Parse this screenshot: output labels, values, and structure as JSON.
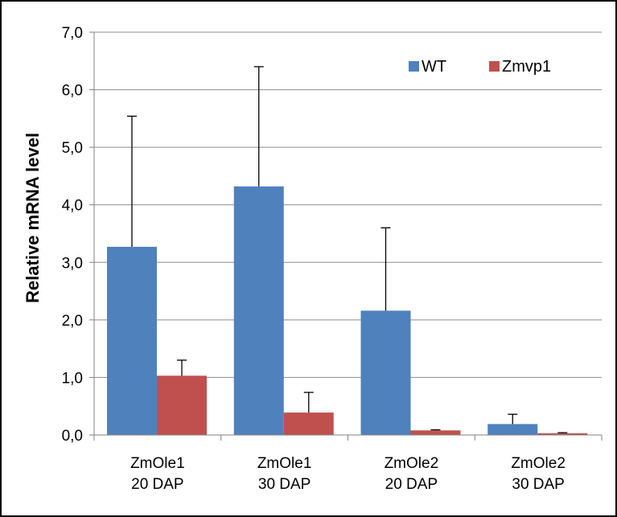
{
  "chart_data": {
    "type": "bar",
    "title": "",
    "xlabel": "",
    "ylabel": "Relative mRNA level",
    "ylim": [
      0,
      7
    ],
    "ytick_step": 1,
    "ytick_labels": [
      "0,0",
      "1,0",
      "2,0",
      "3,0",
      "4,0",
      "5,0",
      "6,0",
      "7,0"
    ],
    "grid": true,
    "legend_position": "top-right",
    "categories": [
      [
        "ZmOle1",
        "20 DAP"
      ],
      [
        "ZmOle1",
        "30 DAP"
      ],
      [
        "ZmOle2",
        "20 DAP"
      ],
      [
        "ZmOle2",
        "30 DAP"
      ]
    ],
    "series": [
      {
        "name": "WT",
        "color": "#4f81bd",
        "values": [
          3.27,
          4.32,
          2.16,
          0.19
        ],
        "error_plus": [
          2.27,
          2.08,
          1.44,
          0.17
        ]
      },
      {
        "name": "Zmvp1",
        "color": "#c0504d",
        "values": [
          1.03,
          0.39,
          0.08,
          0.03
        ],
        "error_plus": [
          0.27,
          0.35,
          0.01,
          0.01
        ]
      }
    ]
  }
}
